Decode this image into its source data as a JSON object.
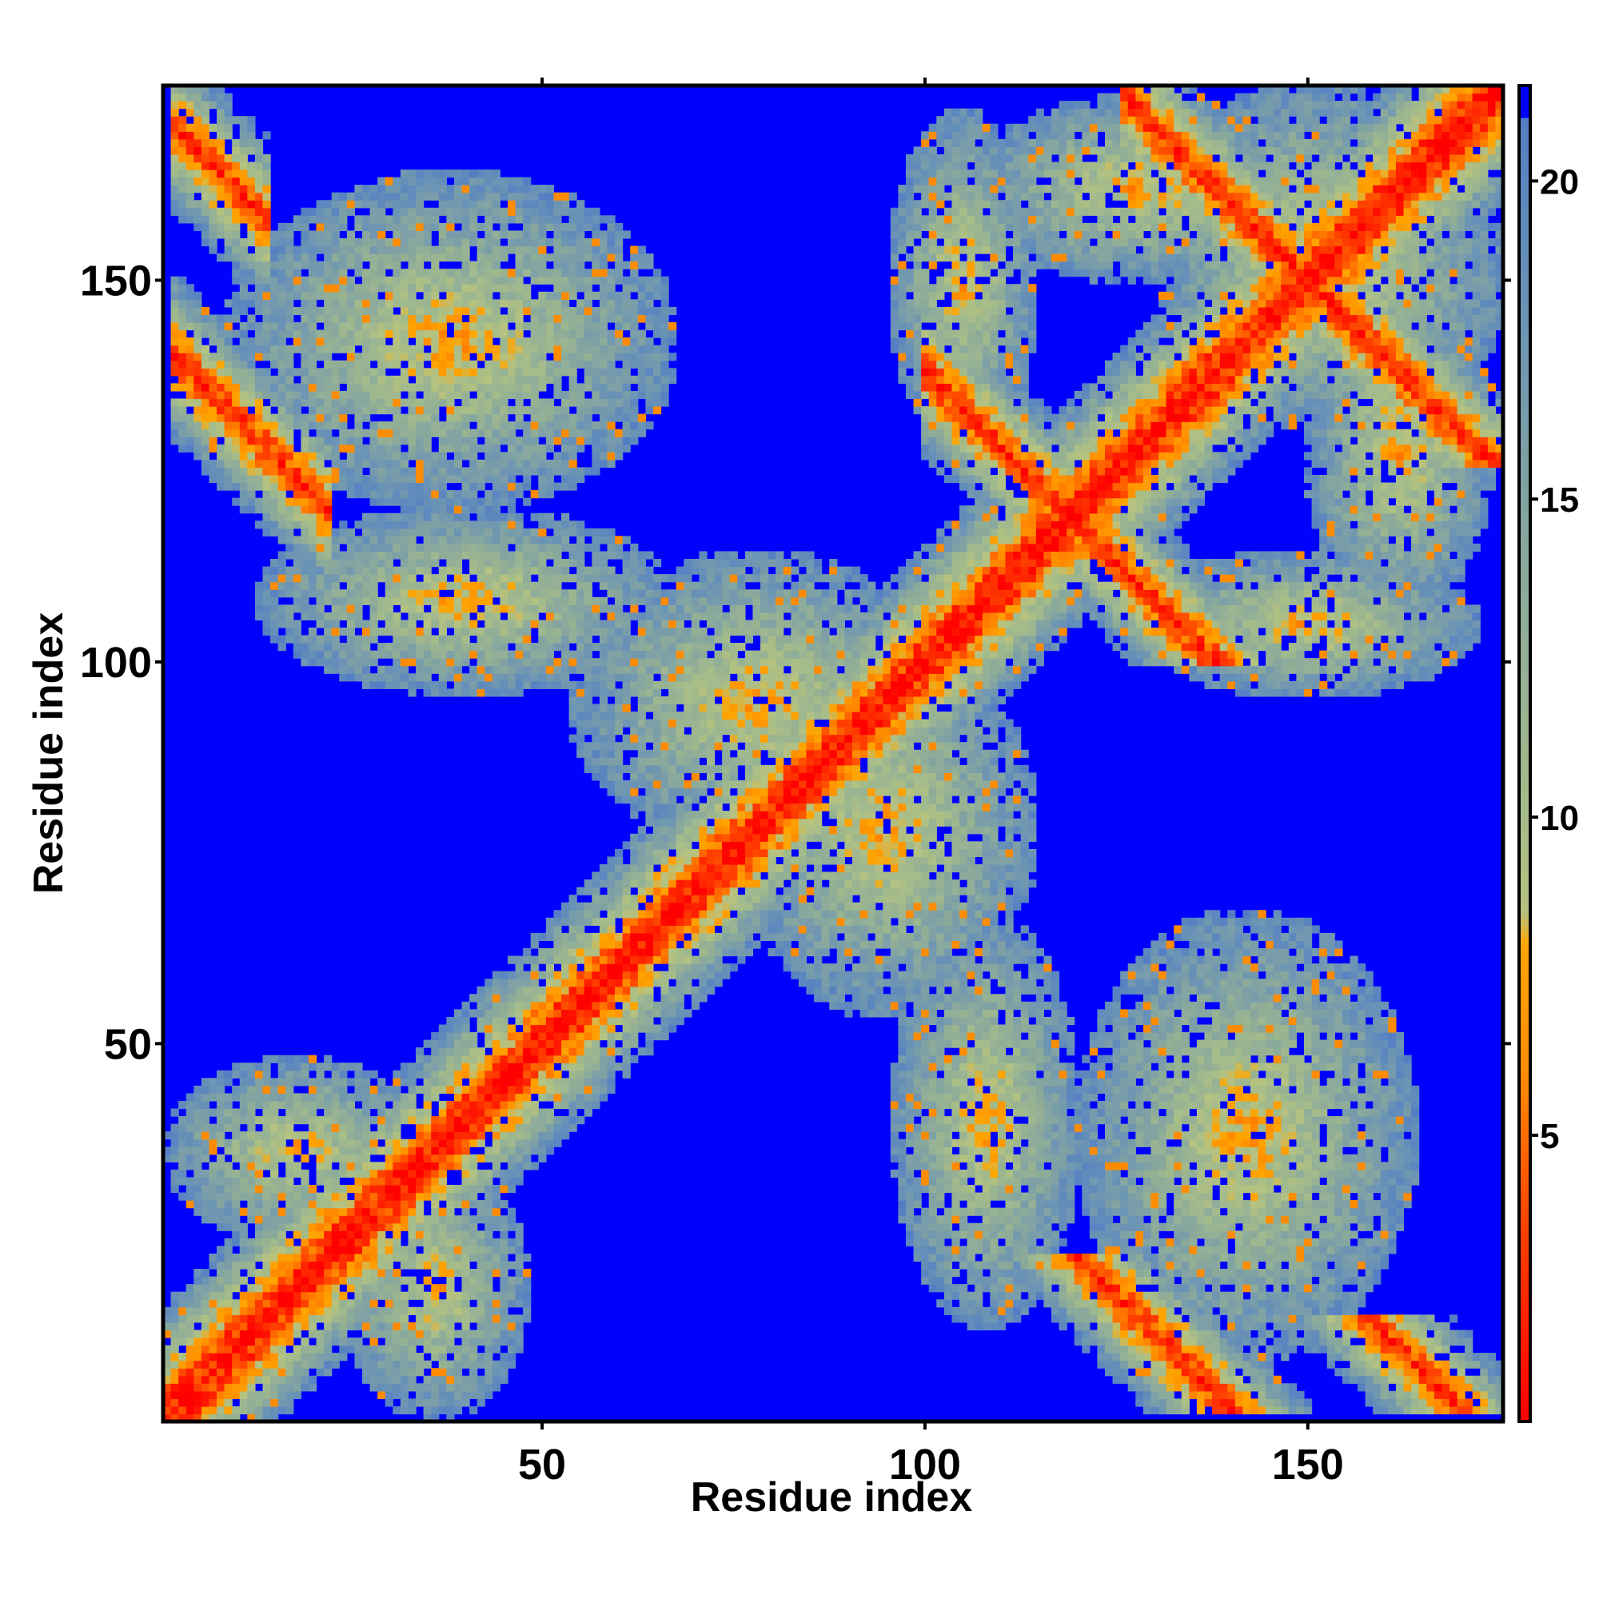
{
  "chart_data": {
    "type": "heatmap",
    "title": "",
    "xlabel": "Residue index",
    "ylabel": "Residue index",
    "xlim": [
      1,
      175
    ],
    "ylim": [
      1,
      175
    ],
    "x_ticks": [
      50,
      100,
      150
    ],
    "y_ticks": [
      50,
      100,
      150
    ],
    "colorbar": {
      "range": [
        0.5,
        21.5
      ],
      "ticks": [
        5,
        10,
        15,
        20
      ],
      "colors": {
        "near": "#ff0000",
        "close": "#ff6a00",
        "mid": "#ffa500",
        "contact": "#9db98c",
        "medium": "#6b93b5",
        "far": "#0000ff"
      },
      "stops": [
        {
          "value": 0.5,
          "color": "#ff0000"
        },
        {
          "value": 3.5,
          "color": "#ff4000"
        },
        {
          "value": 6.0,
          "color": "#ff8c00"
        },
        {
          "value": 8.0,
          "color": "#ffa500"
        },
        {
          "value": 8.5,
          "color": "#b7c27f"
        },
        {
          "value": 10.0,
          "color": "#a5bc8a"
        },
        {
          "value": 14.0,
          "color": "#8aa99c"
        },
        {
          "value": 18.0,
          "color": "#6b93b5"
        },
        {
          "value": 20.0,
          "color": "#5b86bf"
        },
        {
          "value": 21.5,
          "color": "#5078c8"
        }
      ]
    },
    "description_of_structure": {
      "main_diagonal": "distance near 0 along i=j",
      "anti_parallel_contacts": [
        {
          "center": [
            12,
            160
          ],
          "orientation": "anti"
        },
        {
          "center": [
            12,
            130
          ],
          "orientation": "anti"
        },
        {
          "center": [
            108,
            130
          ],
          "orientation": "anti"
        },
        {
          "center": [
            130,
            108
          ],
          "orientation": "anti"
        },
        {
          "center": [
            130,
            12
          ],
          "orientation": "anti"
        },
        {
          "center": [
            160,
            12
          ],
          "orientation": "anti"
        }
      ],
      "broad_contact_bands": [
        {
          "center": [
            40,
            140
          ]
        },
        {
          "center": [
            140,
            40
          ]
        },
        {
          "center": [
            75,
            95
          ]
        },
        {
          "center": [
            95,
            75
          ]
        },
        {
          "center": [
            35,
            110
          ]
        },
        {
          "center": [
            110,
            35
          ]
        },
        {
          "center": [
            150,
            150
          ]
        }
      ]
    }
  }
}
